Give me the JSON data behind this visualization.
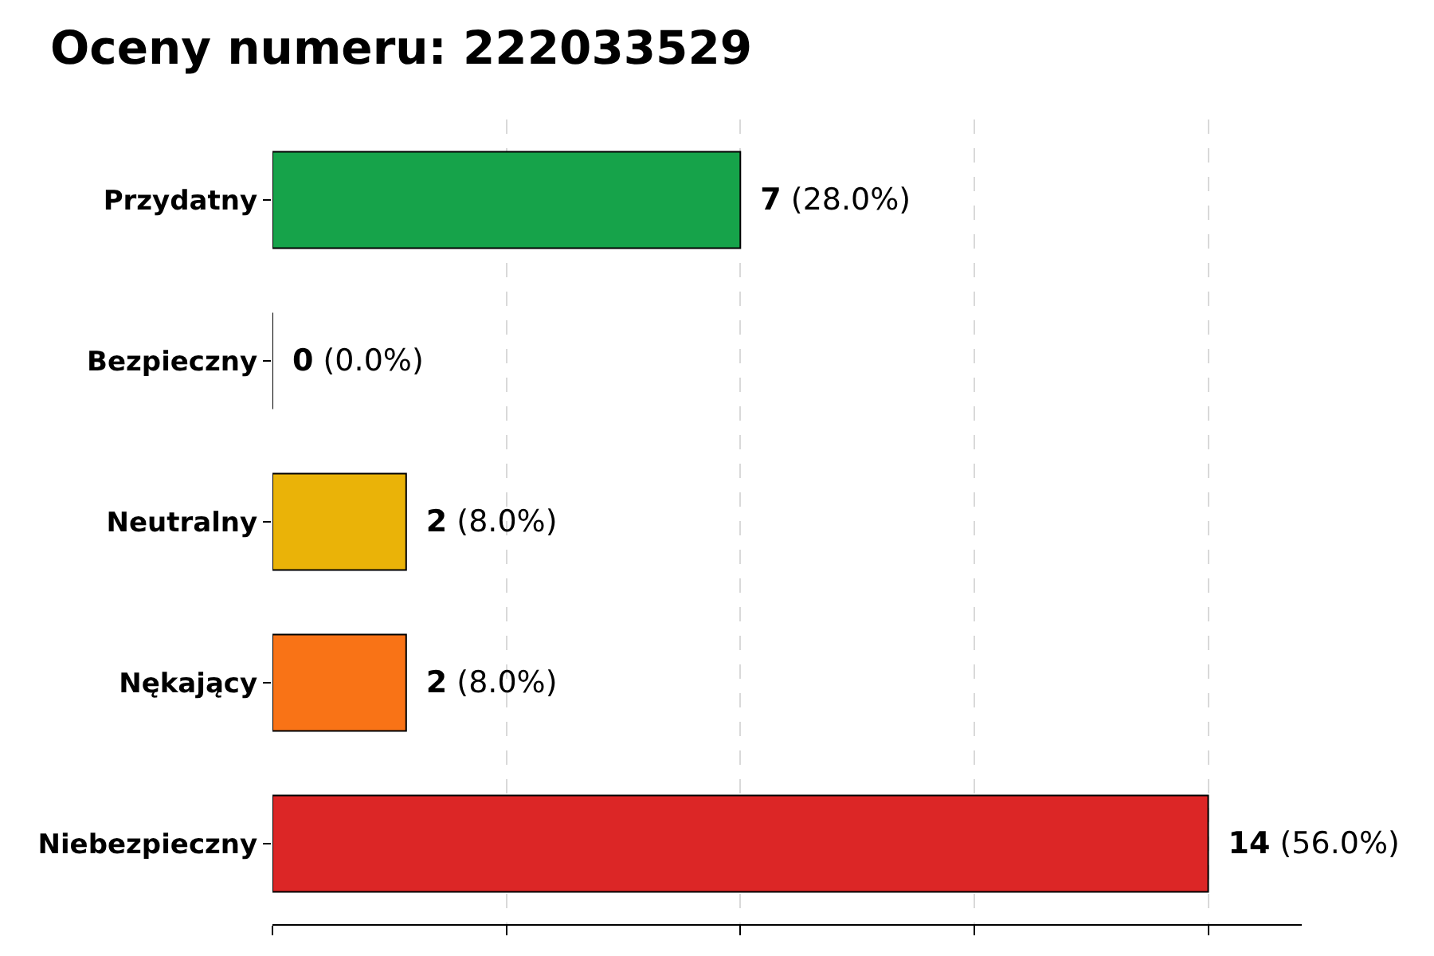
{
  "chart_data": {
    "type": "bar",
    "orientation": "horizontal",
    "title": "Oceny numeru: 222033529",
    "categories": [
      "Przydatny",
      "Bezpieczny",
      "Neutralny",
      "Nękający",
      "Niebezpieczny"
    ],
    "values": [
      7,
      0,
      2,
      2,
      14
    ],
    "colors": [
      "#16a34a",
      "#000000",
      "#eab308",
      "#f97316",
      "#dc2626"
    ],
    "value_labels": [
      "7 (28.0%)",
      "0 (0.0%)",
      "2 (8.0%)",
      "2 (8.0%)",
      "14 (56.0%)"
    ],
    "xlim": [
      0,
      15.4
    ],
    "xticks": [
      {
        "value": 0,
        "label": null
      },
      {
        "value": 3.5,
        "label": null
      },
      {
        "value": 7,
        "label": null
      },
      {
        "value": 10.5,
        "label": null
      },
      {
        "value": 14,
        "label": null
      }
    ],
    "grid": "x",
    "tick_labels": "y",
    "legend": false
  }
}
